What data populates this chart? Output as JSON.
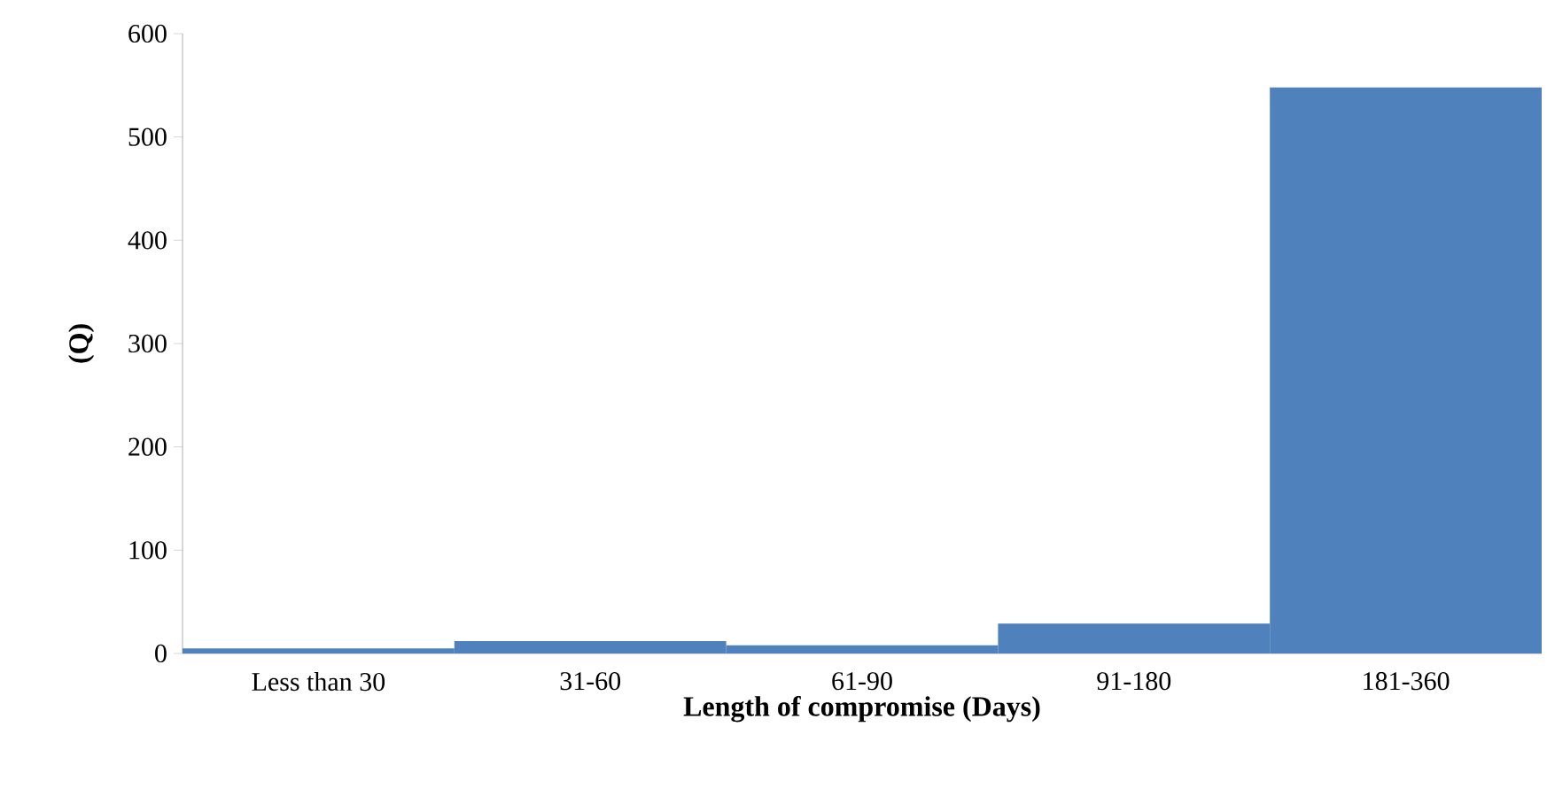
{
  "chart_data": {
    "type": "bar",
    "xlabel": "Length of compromise (Days)",
    "ylabel": "(Q)",
    "categories": [
      "Less than 30",
      "31-60",
      "61-90",
      "91-180",
      "181-360"
    ],
    "values": [
      5,
      12,
      8,
      29,
      548
    ],
    "color": "#4f81bd",
    "ylim": [
      0,
      600
    ],
    "yticks": [
      0,
      100,
      200,
      300,
      400,
      500,
      600
    ]
  }
}
